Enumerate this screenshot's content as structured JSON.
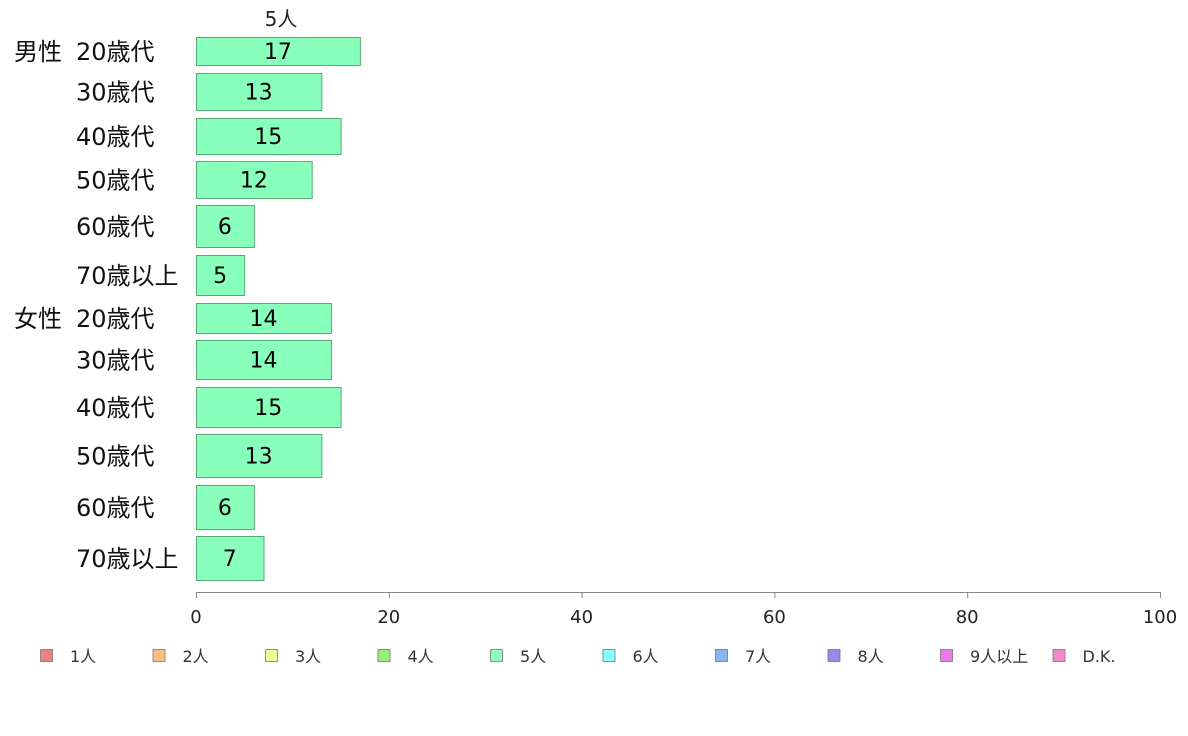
{
  "chart_data": {
    "type": "bar",
    "orientation": "horizontal",
    "series_header": "5人",
    "groups": [
      {
        "label": "男性",
        "categories": [
          "20歳代",
          "30歳代",
          "40歳代",
          "50歳代",
          "60歳代",
          "70歳以上"
        ],
        "values": [
          17,
          13,
          15,
          12,
          6,
          5
        ]
      },
      {
        "label": "女性",
        "categories": [
          "20歳代",
          "30歳代",
          "40歳代",
          "50歳代",
          "60歳代",
          "70歳以上"
        ],
        "values": [
          14,
          14,
          15,
          13,
          6,
          7
        ]
      }
    ],
    "xlim": [
      0,
      100
    ],
    "xticks": [
      0,
      20,
      40,
      60,
      80,
      100
    ],
    "grid": false,
    "legend_position": "bottom",
    "legend": [
      {
        "label": "1人",
        "color": "#f08080"
      },
      {
        "label": "2人",
        "color": "#f8c080"
      },
      {
        "label": "3人",
        "color": "#eeff88"
      },
      {
        "label": "4人",
        "color": "#99ee77"
      },
      {
        "label": "5人",
        "color": "#88ffbb"
      },
      {
        "label": "6人",
        "color": "#88ffff"
      },
      {
        "label": "7人",
        "color": "#88b4f0"
      },
      {
        "label": "8人",
        "color": "#9988ee"
      },
      {
        "label": "9人以上",
        "color": "#ee77ee"
      },
      {
        "label": "D.K.",
        "color": "#f088cc"
      }
    ],
    "bar_color": "#88ffbb",
    "bar_stroke": "#55aa77"
  }
}
